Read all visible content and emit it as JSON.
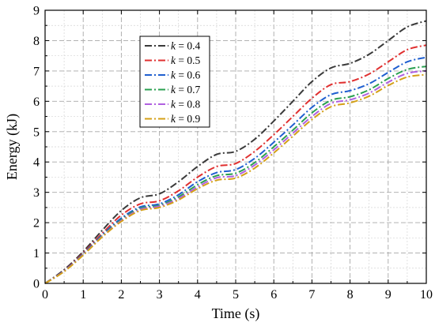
{
  "chart_data": {
    "type": "line",
    "xlabel": "Time (s)",
    "ylabel": "Energy (kJ)",
    "xlim": [
      0,
      10
    ],
    "ylim": [
      0,
      9
    ],
    "xticks": [
      0,
      1,
      2,
      3,
      4,
      5,
      6,
      7,
      8,
      9,
      10
    ],
    "yticks": [
      0,
      1,
      2,
      3,
      4,
      5,
      6,
      7,
      8,
      9
    ],
    "grid": true,
    "grid_style": "dashed, major and minor",
    "legend_position": "upper-left",
    "line_style": "dash-dot",
    "x": [
      0,
      0.5,
      1,
      1.5,
      2,
      2.5,
      3,
      3.5,
      4,
      4.5,
      5,
      5.5,
      6,
      6.5,
      7,
      7.5,
      8,
      8.5,
      9,
      9.5,
      10
    ],
    "series": [
      {
        "name": "k = 0.4",
        "label_var": "k",
        "label_rest": " = 0.4",
        "color": "#3a3a3a",
        "values": [
          0,
          0.45,
          1.05,
          1.75,
          2.4,
          2.82,
          2.95,
          3.35,
          3.85,
          4.25,
          4.35,
          4.75,
          5.35,
          6.0,
          6.65,
          7.1,
          7.25,
          7.55,
          8.0,
          8.45,
          8.65
        ]
      },
      {
        "name": "k = 0.5",
        "label_var": "k",
        "label_rest": " = 0.5",
        "color": "#e03030",
        "values": [
          0,
          0.42,
          1.0,
          1.65,
          2.25,
          2.62,
          2.72,
          3.05,
          3.5,
          3.85,
          3.95,
          4.35,
          4.9,
          5.5,
          6.1,
          6.55,
          6.65,
          6.9,
          7.3,
          7.7,
          7.85
        ]
      },
      {
        "name": "k = 0.6",
        "label_var": "k",
        "label_rest": " = 0.6",
        "color": "#1f5fd0",
        "values": [
          0,
          0.41,
          0.97,
          1.6,
          2.15,
          2.52,
          2.62,
          2.92,
          3.35,
          3.65,
          3.75,
          4.12,
          4.65,
          5.22,
          5.8,
          6.22,
          6.35,
          6.58,
          6.95,
          7.3,
          7.45
        ]
      },
      {
        "name": "k = 0.7",
        "label_var": "k",
        "label_rest": " = 0.7",
        "color": "#2aa050",
        "values": [
          0,
          0.4,
          0.95,
          1.57,
          2.1,
          2.47,
          2.57,
          2.85,
          3.25,
          3.55,
          3.63,
          3.98,
          4.5,
          5.05,
          5.62,
          6.03,
          6.15,
          6.38,
          6.75,
          7.05,
          7.15
        ]
      },
      {
        "name": "k = 0.8",
        "label_var": "k",
        "label_rest": " = 0.8",
        "color": "#b060e0",
        "values": [
          0,
          0.4,
          0.94,
          1.55,
          2.07,
          2.44,
          2.54,
          2.8,
          3.18,
          3.48,
          3.55,
          3.9,
          4.4,
          4.95,
          5.5,
          5.93,
          6.05,
          6.27,
          6.63,
          6.92,
          7.0
        ]
      },
      {
        "name": "k = 0.9",
        "label_var": "k",
        "label_rest": " = 0.9",
        "color": "#d4a017",
        "values": [
          0,
          0.39,
          0.93,
          1.53,
          2.04,
          2.4,
          2.5,
          2.75,
          3.12,
          3.4,
          3.47,
          3.8,
          4.3,
          4.85,
          5.4,
          5.82,
          5.95,
          6.17,
          6.52,
          6.8,
          6.88
        ]
      }
    ]
  }
}
